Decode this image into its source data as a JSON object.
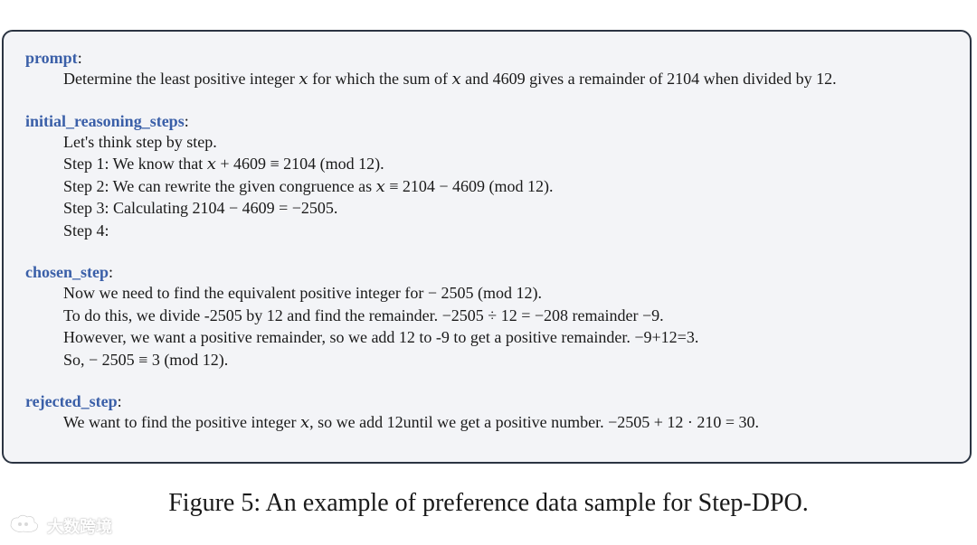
{
  "sections": [
    {
      "key": "prompt",
      "lines": [
        "Determine the least positive integer 𝑥 for which the sum of 𝑥 and 4609 gives a remainder of 2104 when divided by 12."
      ]
    },
    {
      "key": "initial_reasoning_steps",
      "lines": [
        "Let's think step by step.",
        "Step 1: We know that 𝑥 + 4609 ≡ 2104 (mod 12).",
        "Step 2: We can rewrite the given congruence as 𝑥 ≡ 2104 − 4609 (mod 12).",
        "Step 3: Calculating 2104 − 4609 = −2505.",
        "Step 4:"
      ]
    },
    {
      "key": "chosen_step",
      "lines": [
        "Now we need to find the equivalent positive integer for − 2505 (mod 12).",
        "To do this, we divide -2505 by 12 and find the remainder. −2505  ÷ 12 = −208 remainder −9.",
        "However, we want a positive remainder, so we add 12 to -9 to get a positive remainder. −9+12=3.",
        "So, − 2505 ≡ 3 (mod 12)."
      ]
    },
    {
      "key": "rejected_step",
      "lines": [
        "We want to find the positive integer 𝑥, so we add 12until we get a positive number. −2505 + 12 · 210 = 30."
      ]
    }
  ],
  "caption": "Figure 5: An example of preference data sample for Step-DPO.",
  "watermark": {
    "text": "大数跨境",
    "icon": "watermark-logo-icon"
  }
}
